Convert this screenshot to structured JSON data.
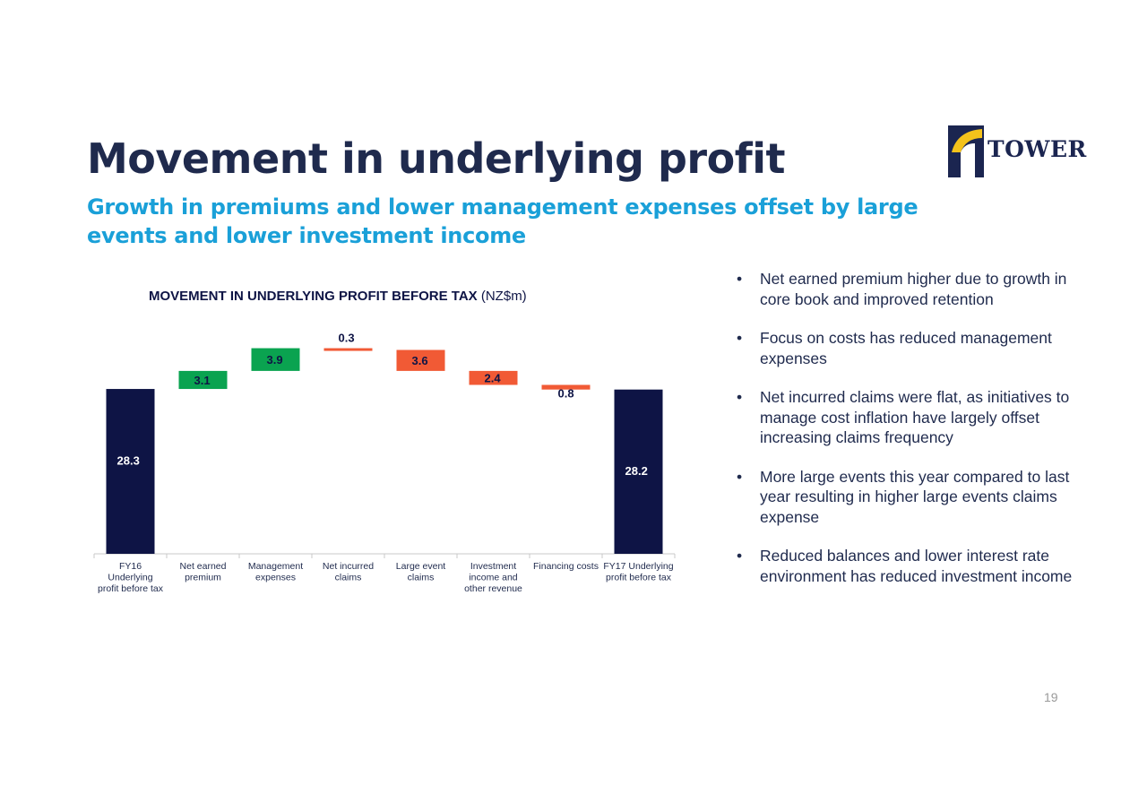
{
  "slide": {
    "title": "Movement in underlying profit",
    "subtitle": "Growth in premiums and lower management expenses offset by large events and lower investment income",
    "page_number": "19"
  },
  "logo": {
    "text": "TOWER",
    "icon": "tower-logo-icon"
  },
  "chart_header": {
    "bold": "MOVEMENT IN UNDERLYING PROFIT BEFORE TAX",
    "unit": " (NZ$m)"
  },
  "bullets": [
    "Net earned premium higher due to growth in core book and improved retention",
    "Focus on costs has reduced management expenses",
    "Net incurred claims were flat, as initiatives to manage cost inflation have largely offset increasing claims frequency",
    "More large events this year compared to last year resulting in higher large events claims expense",
    "Reduced balances and lower interest rate environment has reduced investment income"
  ],
  "bullet_symbol": "•",
  "colors": {
    "total": "#0e1445",
    "increase": "#0aa350",
    "decrease": "#f15a35",
    "title": "#1f2a4d",
    "subtitle": "#1aa0d8"
  },
  "chart_data": {
    "type": "waterfall",
    "title": "MOVEMENT IN UNDERLYING PROFIT BEFORE TAX (NZ$m)",
    "categories": [
      [
        "FY16",
        "Underlying",
        "profit before tax"
      ],
      [
        "Net earned",
        "premium"
      ],
      [
        "Management",
        "expenses"
      ],
      [
        "Net incurred",
        "claims"
      ],
      [
        "Large event",
        "claims"
      ],
      [
        "Investment",
        "income and",
        "other revenue"
      ],
      [
        "Financing costs"
      ],
      [
        "FY17 Underlying",
        "profit before tax"
      ]
    ],
    "steps": [
      {
        "kind": "total",
        "value": 28.3,
        "label": "28.3"
      },
      {
        "kind": "increase",
        "value": 3.1,
        "label": "3.1"
      },
      {
        "kind": "increase",
        "value": 3.9,
        "label": "3.9"
      },
      {
        "kind": "decrease",
        "value": -0.3,
        "label": "0.3"
      },
      {
        "kind": "decrease",
        "value": -3.6,
        "label": "3.6"
      },
      {
        "kind": "decrease",
        "value": -2.4,
        "label": "2.4"
      },
      {
        "kind": "decrease",
        "value": -0.8,
        "label": "0.8"
      },
      {
        "kind": "total",
        "value": 28.2,
        "label": "28.2"
      }
    ],
    "ylim": [
      0,
      38
    ],
    "grid": false,
    "legend": "none"
  }
}
